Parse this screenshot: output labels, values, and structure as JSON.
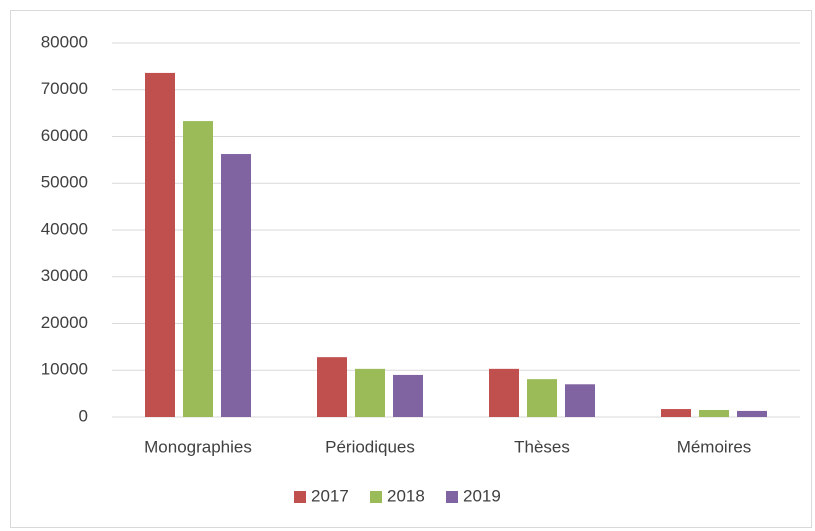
{
  "chart_data": {
    "type": "bar",
    "categories": [
      "Monographies",
      "Périodiques",
      "Thèses",
      "Mémoires"
    ],
    "series": [
      {
        "name": "2017",
        "color": "#c0504d",
        "values": [
          73600,
          12800,
          10300,
          1700
        ]
      },
      {
        "name": "2018",
        "color": "#9bbb59",
        "values": [
          63300,
          10300,
          8100,
          1500
        ]
      },
      {
        "name": "2019",
        "color": "#8064a2",
        "values": [
          56250,
          9000,
          7000,
          1300
        ]
      }
    ],
    "ylim": [
      0,
      80000
    ],
    "yticks": [
      0,
      10000,
      20000,
      30000,
      40000,
      50000,
      60000,
      70000,
      80000
    ],
    "grid": true,
    "legend": "bottom"
  }
}
